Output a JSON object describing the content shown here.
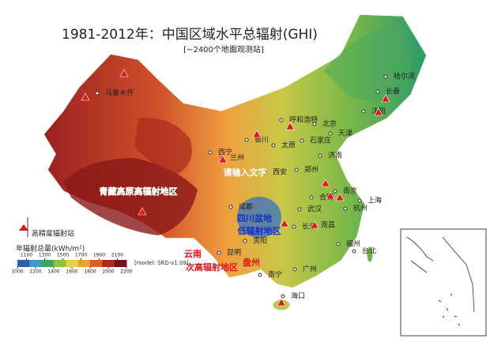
{
  "header": {
    "title": "1981-2012年：中国区域水平总辐射(GHI)",
    "subtitle": "[~2400个地面观测站]"
  },
  "cities": [
    "乌鲁木齐",
    "哈尔滨",
    "长春",
    "沈阳",
    "呼和浩特",
    "北京",
    "天津",
    "银川",
    "太原",
    "石家庄",
    "济南",
    "西宁",
    "兰州",
    "郑州",
    "西安",
    "合肥",
    "南京",
    "上海",
    "武汉",
    "杭州",
    "成都",
    "长沙",
    "南昌",
    "福州",
    "台北",
    "贵阳",
    "昆明",
    "广州",
    "南宁",
    "海口"
  ],
  "annotations": [
    "青藏高原高辐射地区",
    "请输入文字",
    "四川盆地",
    "低辐射地区",
    "云南",
    "次高辐射地区",
    "盘州"
  ],
  "legend": {
    "station": "高精度辐射站",
    "colorbar_title": "年辐射总量(kWh/m²)",
    "model": "[model: SRD-v1.09]",
    "lim": [
      1000,
      2200
    ],
    "ticks_top": [
      1100,
      1300,
      1500,
      1700,
      1900,
      2100
    ],
    "ticks_bottom": [
      1000,
      1200,
      1400,
      1600,
      1800,
      2000,
      2200
    ],
    "colors": [
      "#2b5fb0",
      "#3a9ad0",
      "#3aa85a",
      "#8cc43c",
      "#e8d040",
      "#f0a030",
      "#d86020",
      "#b02818",
      "#7a0e1a"
    ]
  }
}
